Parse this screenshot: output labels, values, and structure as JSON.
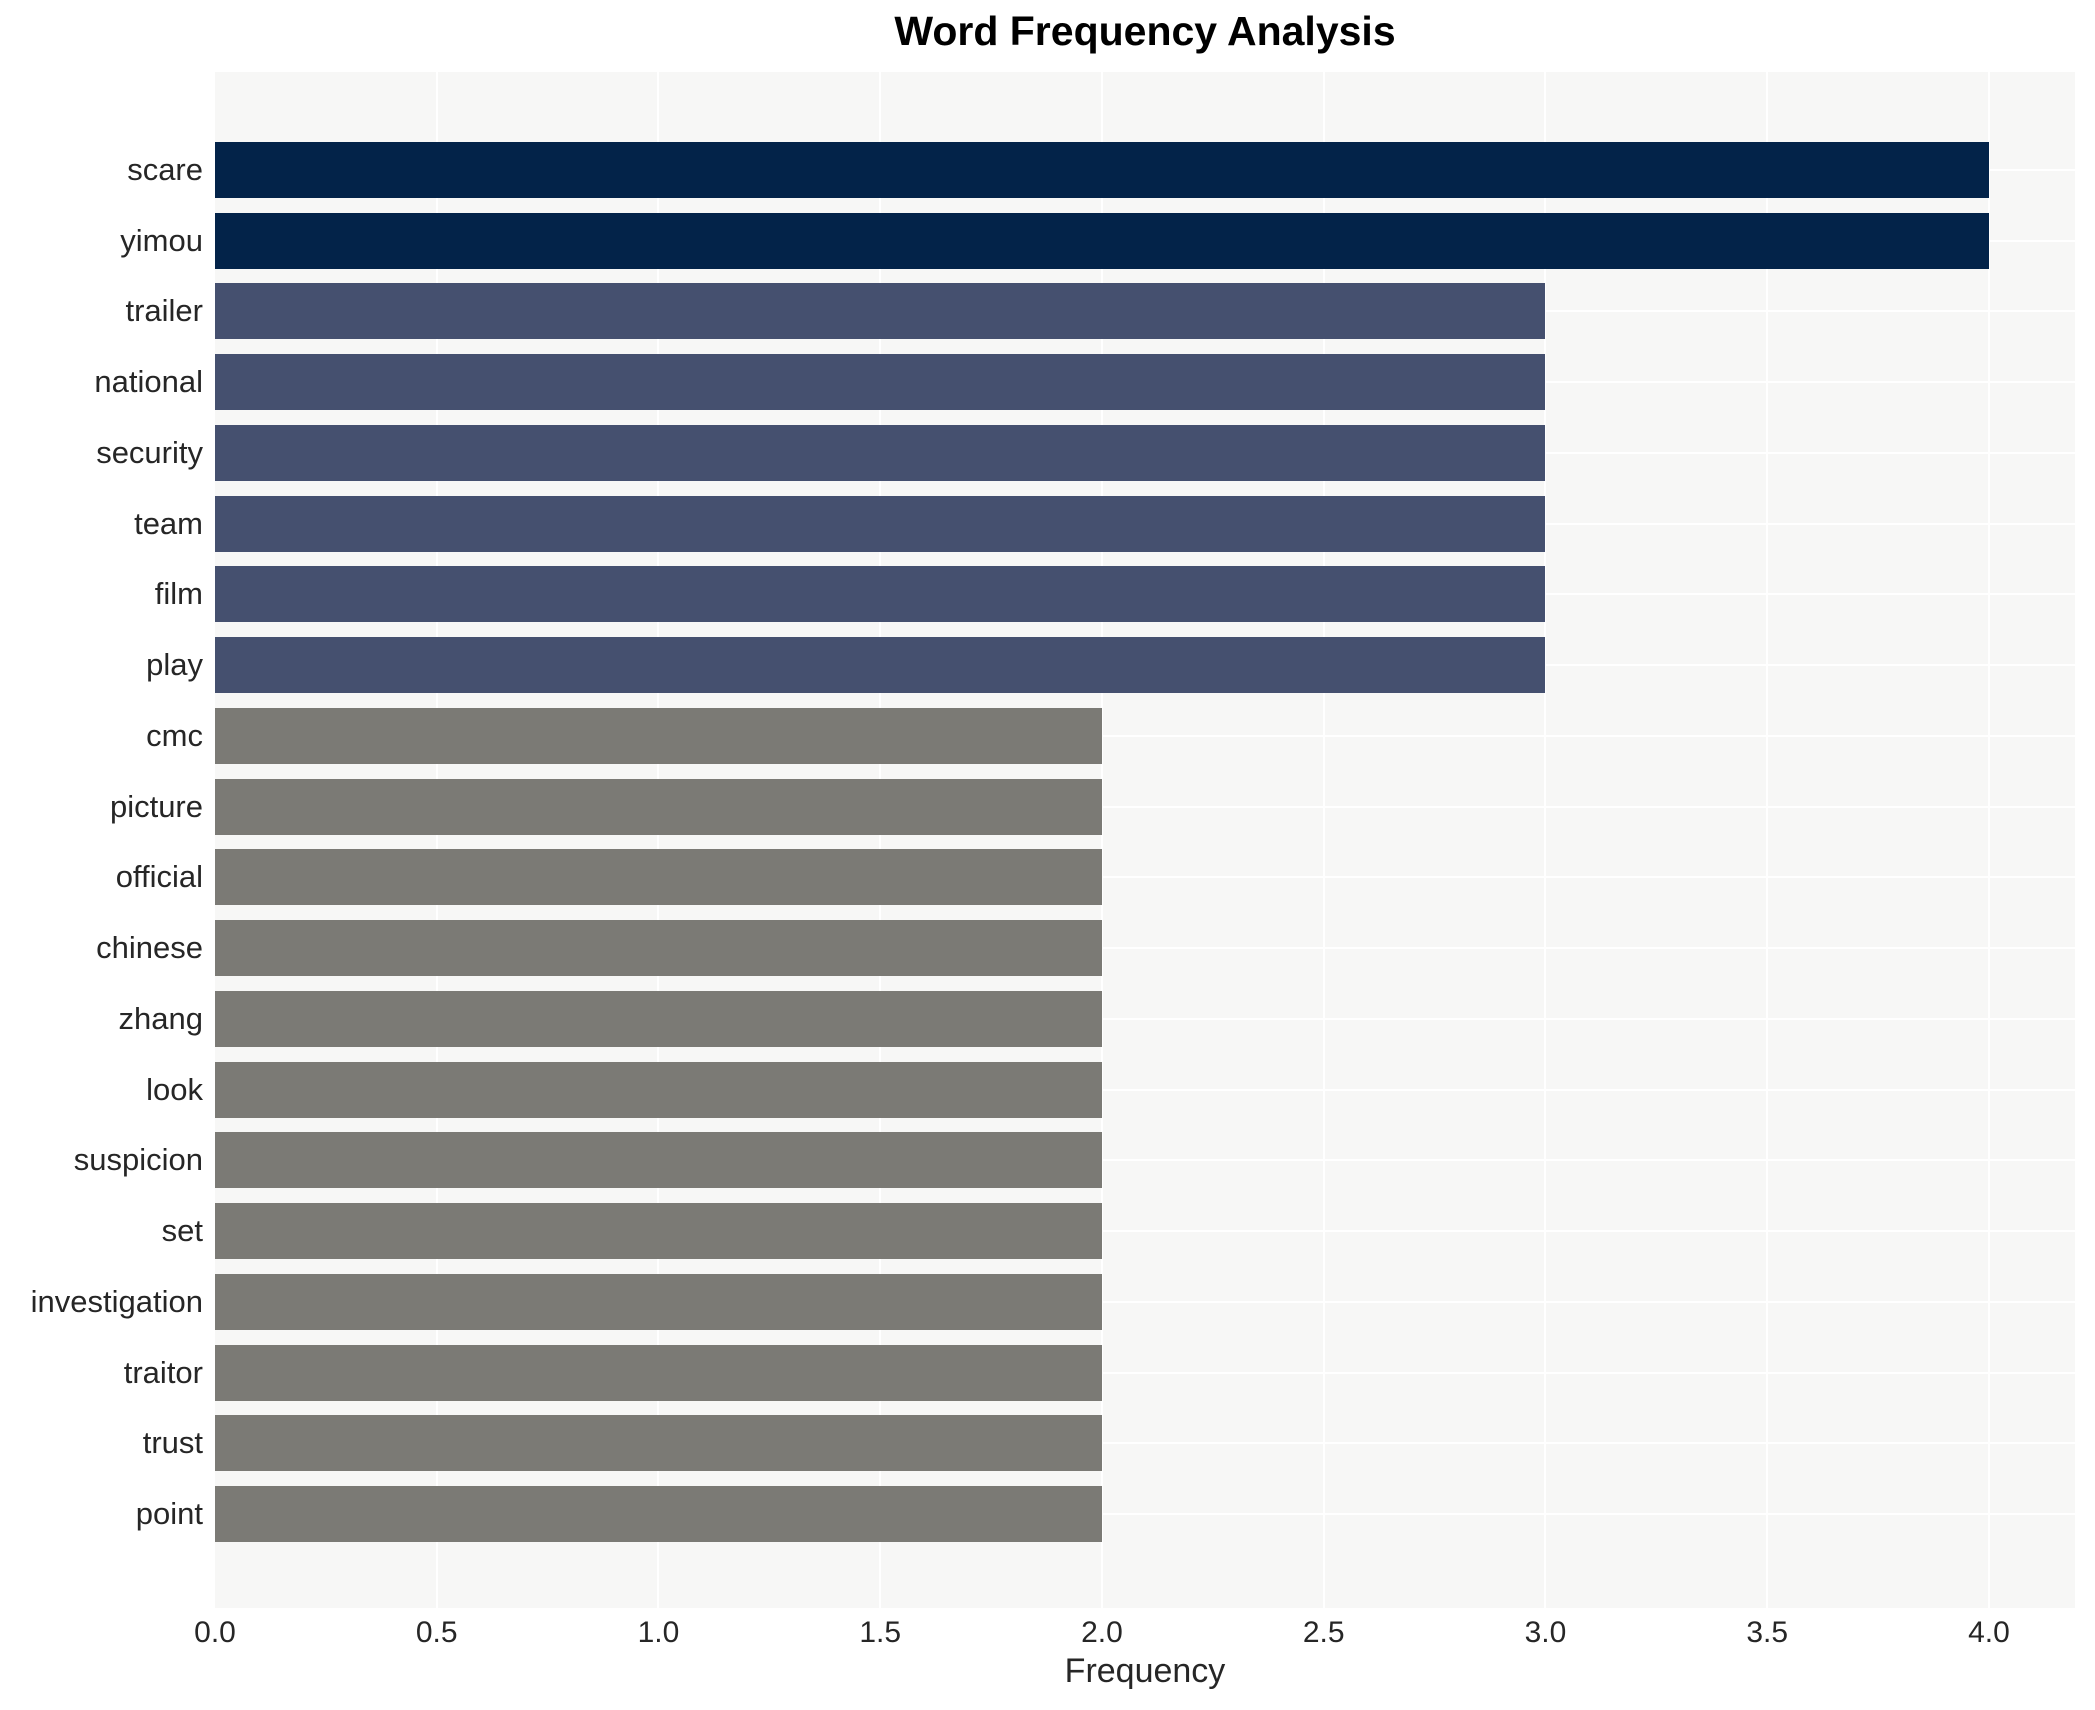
{
  "chart_data": {
    "type": "bar",
    "orientation": "horizontal",
    "title": "Word Frequency Analysis",
    "xlabel": "Frequency",
    "ylabel": "",
    "categories": [
      "scare",
      "yimou",
      "trailer",
      "national",
      "security",
      "team",
      "film",
      "play",
      "cmc",
      "picture",
      "official",
      "chinese",
      "zhang",
      "look",
      "suspicion",
      "set",
      "investigation",
      "traitor",
      "trust",
      "point"
    ],
    "values": [
      4,
      4,
      3,
      3,
      3,
      3,
      3,
      3,
      2,
      2,
      2,
      2,
      2,
      2,
      2,
      2,
      2,
      2,
      2,
      2
    ],
    "xlim": [
      0,
      4.194
    ],
    "xticks": [
      "0.0",
      "0.5",
      "1.0",
      "1.5",
      "2.0",
      "2.5",
      "3.0",
      "3.5",
      "4.0"
    ],
    "grid": "on",
    "legend": "none",
    "colors": {
      "value_4": "#032349",
      "value_3": "#45506f",
      "value_2": "#7b7a75",
      "plot_background": "#f7f7f6",
      "gridline": "#ffffff",
      "text": "#262626"
    }
  }
}
